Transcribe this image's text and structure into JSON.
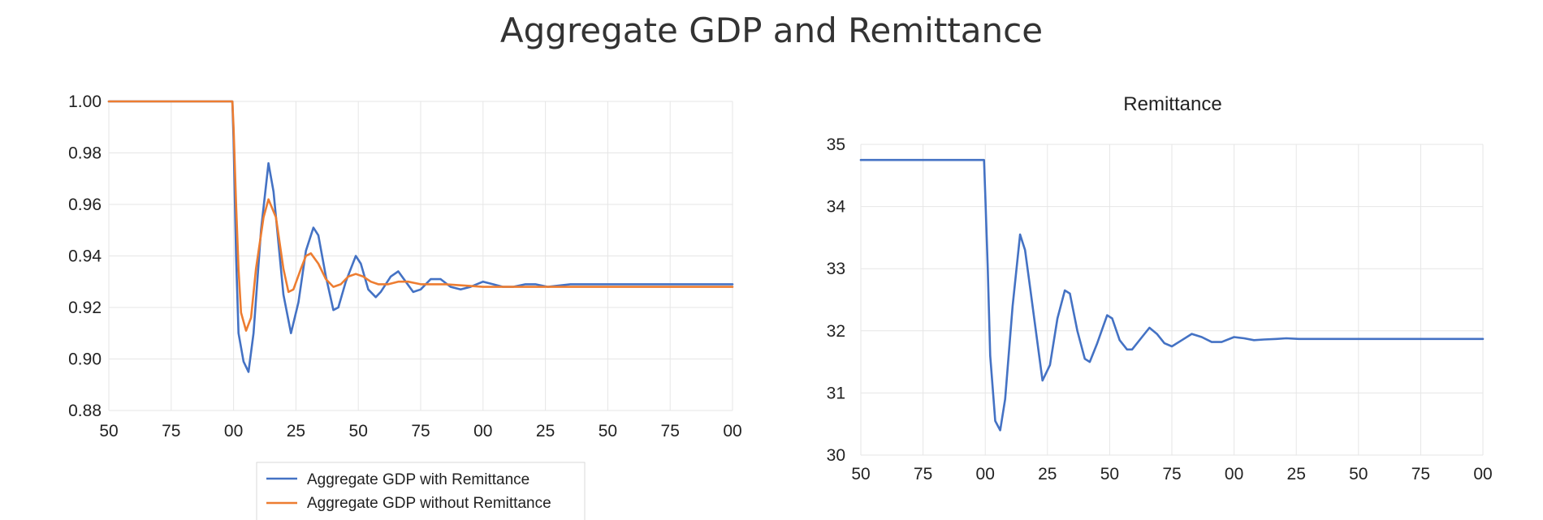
{
  "figure": {
    "title": "Aggregate GDP and Remittance"
  },
  "chart_data": [
    {
      "type": "line",
      "title": "",
      "xlabel": "",
      "ylabel": "",
      "x_tick_labels": [
        "50",
        "75",
        "00",
        "25",
        "50",
        "75",
        "00",
        "25",
        "50",
        "75",
        "00"
      ],
      "xlim": [
        1950,
        2200
      ],
      "ylim": [
        0.88,
        1.0
      ],
      "y_ticks": [
        "0.88",
        "0.90",
        "0.92",
        "0.94",
        "0.96",
        "0.98",
        "1.00"
      ],
      "grid": true,
      "legend": "bottom-center",
      "series": [
        {
          "name": "Aggregate GDP with Remittance",
          "color": "#4472c4",
          "x": [
            1950,
            1999.5,
            2000,
            2001,
            2002,
            2004,
            2006,
            2008,
            2011,
            2014,
            2016,
            2018,
            2020,
            2023,
            2026,
            2029,
            2032,
            2034,
            2037,
            2040,
            2042,
            2045,
            2049,
            2051,
            2054,
            2057,
            2059,
            2063,
            2066,
            2069,
            2072,
            2075,
            2079,
            2083,
            2087,
            2091,
            2095,
            2100,
            2104,
            2108,
            2112,
            2117,
            2121,
            2126,
            2135,
            2150,
            2200
          ],
          "y": [
            1.0,
            1.0,
            0.985,
            0.94,
            0.91,
            0.899,
            0.895,
            0.91,
            0.95,
            0.976,
            0.965,
            0.945,
            0.925,
            0.91,
            0.922,
            0.942,
            0.951,
            0.948,
            0.932,
            0.919,
            0.92,
            0.93,
            0.94,
            0.937,
            0.927,
            0.924,
            0.926,
            0.932,
            0.934,
            0.93,
            0.926,
            0.927,
            0.931,
            0.931,
            0.928,
            0.927,
            0.928,
            0.93,
            0.929,
            0.928,
            0.928,
            0.929,
            0.929,
            0.928,
            0.929,
            0.929,
            0.929
          ]
        },
        {
          "name": "Aggregate GDP without Remittance",
          "color": "#ed7d31",
          "x": [
            1950,
            1999.5,
            2000,
            2001,
            2002,
            2003,
            2005,
            2007,
            2009,
            2012,
            2014,
            2017,
            2020,
            2022,
            2024,
            2027,
            2029,
            2031,
            2034,
            2037,
            2040,
            2043,
            2046,
            2049,
            2052,
            2055,
            2058,
            2062,
            2066,
            2070,
            2075,
            2085,
            2100,
            2200
          ],
          "y": [
            1.0,
            1.0,
            0.99,
            0.96,
            0.935,
            0.918,
            0.911,
            0.916,
            0.935,
            0.955,
            0.962,
            0.955,
            0.935,
            0.926,
            0.927,
            0.935,
            0.94,
            0.941,
            0.937,
            0.931,
            0.928,
            0.929,
            0.932,
            0.933,
            0.932,
            0.93,
            0.929,
            0.929,
            0.93,
            0.93,
            0.929,
            0.929,
            0.928,
            0.928
          ]
        }
      ]
    },
    {
      "type": "line",
      "title": "Remittance",
      "xlabel": "",
      "ylabel": "",
      "x_tick_labels": [
        "50",
        "75",
        "00",
        "25",
        "50",
        "75",
        "00",
        "25",
        "50",
        "75",
        "00"
      ],
      "xlim": [
        1950,
        2200
      ],
      "ylim": [
        30,
        35
      ],
      "y_ticks": [
        "30",
        "31",
        "32",
        "33",
        "34",
        "35"
      ],
      "grid": true,
      "legend": "none",
      "series": [
        {
          "color": "#4472c4",
          "x": [
            1950,
            1999.5,
            2000,
            2001,
            2002,
            2004,
            2006,
            2008,
            2011,
            2014,
            2016,
            2018,
            2020,
            2023,
            2026,
            2029,
            2032,
            2034,
            2037,
            2040,
            2042,
            2045,
            2049,
            2051,
            2054,
            2057,
            2059,
            2063,
            2066,
            2069,
            2072,
            2075,
            2079,
            2083,
            2087,
            2091,
            2095,
            2100,
            2104,
            2108,
            2112,
            2117,
            2121,
            2126,
            2135,
            2150,
            2200
          ],
          "y": [
            34.75,
            34.75,
            34.2,
            33.0,
            31.6,
            30.55,
            30.4,
            30.9,
            32.4,
            33.55,
            33.3,
            32.7,
            32.1,
            31.2,
            31.45,
            32.2,
            32.65,
            32.6,
            32.0,
            31.55,
            31.5,
            31.8,
            32.25,
            32.2,
            31.85,
            31.7,
            31.7,
            31.9,
            32.05,
            31.95,
            31.8,
            31.75,
            31.85,
            31.95,
            31.9,
            31.82,
            31.82,
            31.9,
            31.88,
            31.85,
            31.86,
            31.87,
            31.88,
            31.87,
            31.87,
            31.87,
            31.87
          ]
        }
      ]
    }
  ]
}
